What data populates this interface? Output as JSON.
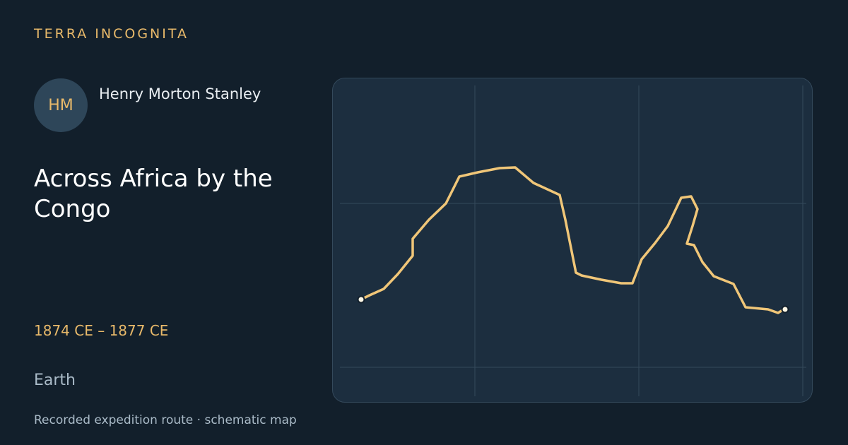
{
  "brand": "TERRA INCOGNITA",
  "author": {
    "initials": "HM",
    "name": "Henry Morton Stanley"
  },
  "expedition": {
    "title": "Across Africa by the Congo",
    "dates": "1874 CE – 1877 CE",
    "place": "Earth"
  },
  "caption": "Recorded expedition route · schematic map",
  "colors": {
    "background": "#121f2b",
    "panel": "#1c2e3f",
    "accent": "#e8b96a",
    "route": "#f0c678",
    "grid": "#34495b",
    "marker": "#fff8e7"
  }
}
